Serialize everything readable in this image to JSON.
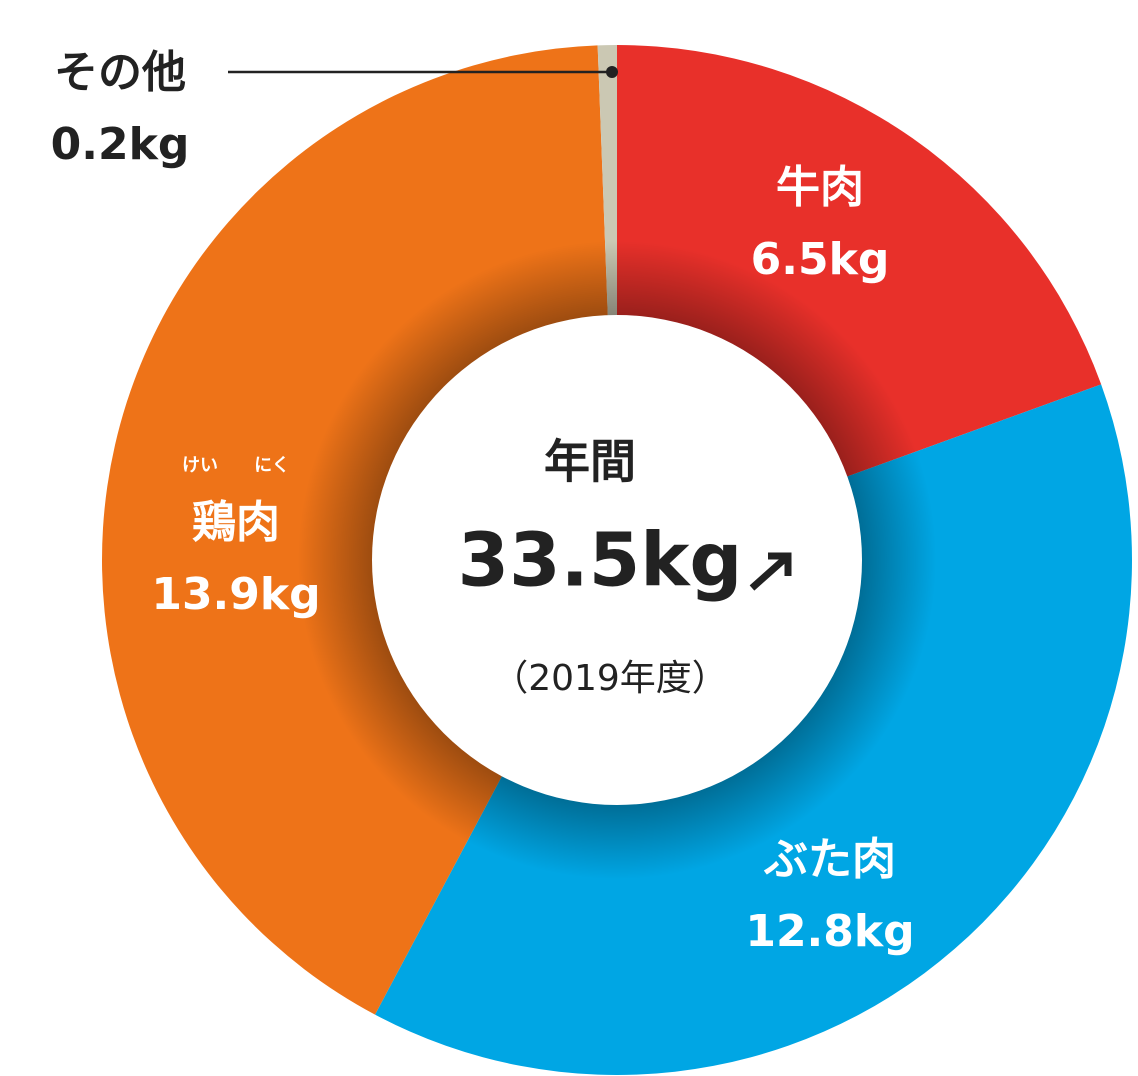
{
  "chart_data": {
    "type": "donut",
    "categories": [
      "牛肉",
      "ぶた肉",
      "鶏肉",
      "その他"
    ],
    "values": [
      6.5,
      12.8,
      13.9,
      0.2
    ],
    "value_labels": [
      "6.5kg",
      "12.8kg",
      "13.9kg",
      "0.2kg"
    ],
    "colors": [
      "#e8302a",
      "#00a6e4",
      "#ee7318",
      "#cbc8b3"
    ],
    "annotations": [
      "けい",
      "にく"
    ],
    "center_text": [
      "年間",
      "33.5kg",
      "（2019年度）"
    ]
  }
}
